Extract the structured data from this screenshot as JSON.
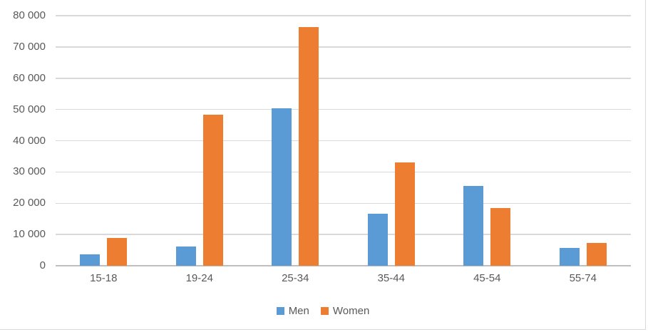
{
  "chart_data": {
    "type": "bar",
    "title": "",
    "categories": [
      "15-18",
      "19-24",
      "25-34",
      "35-44",
      "45-54",
      "55-74"
    ],
    "series": [
      {
        "name": "Men",
        "color": "#5B9BD5",
        "values": [
          3700,
          6200,
          50300,
          16600,
          25500,
          5800
        ]
      },
      {
        "name": "Women",
        "color": "#ED7D31",
        "values": [
          8800,
          48300,
          76400,
          33000,
          18500,
          7300
        ]
      }
    ],
    "xlabel": "",
    "ylabel": "",
    "ylim": [
      0,
      80000
    ],
    "y_step": 10000,
    "y_tick_labels": [
      "0",
      "10 000",
      "20 000",
      "30 000",
      "40 000",
      "50 000",
      "60 000",
      "70 000",
      "80 000"
    ],
    "grid": true,
    "legend_position": "bottom"
  },
  "style": {
    "background": "#FFFFFF",
    "gridline_color": "#D9D9D9",
    "axis_line_color": "#BFBFBF",
    "text_color": "#595959",
    "border_color": "#D9D9D9"
  }
}
